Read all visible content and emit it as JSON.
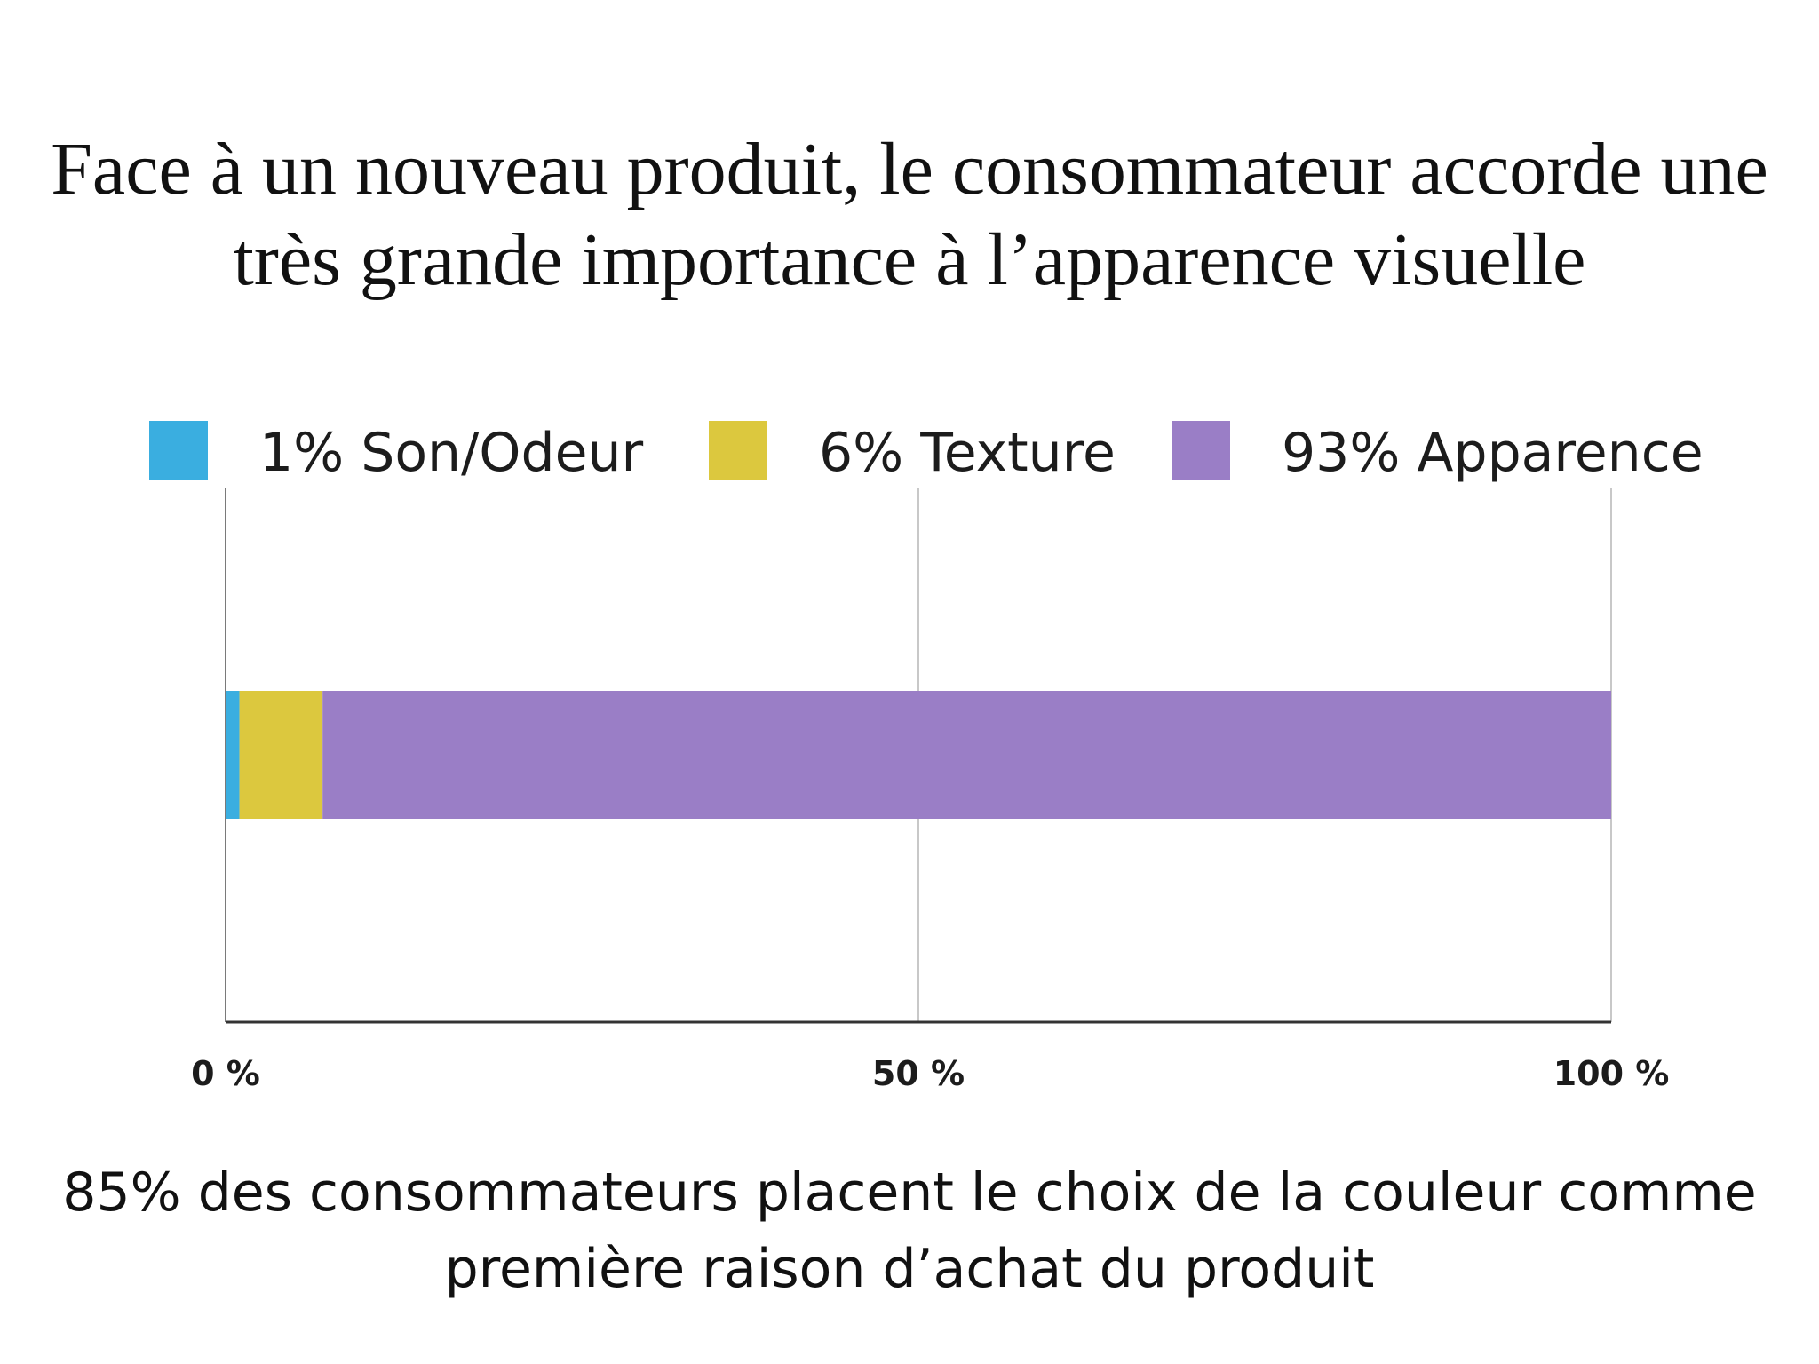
{
  "slide": {
    "title_lines": [
      "Face à un nouveau produit, le consommateur accorde une",
      "très grande importance à l’apparence visuelle"
    ],
    "caption_lines": [
      "85% des consommateurs placent le choix de la couleur comme",
      "première raison d’achat du produit"
    ]
  },
  "chart_data": {
    "type": "bar",
    "orientation": "horizontal",
    "stacked": true,
    "categories": [
      ""
    ],
    "series": [
      {
        "name": "1% Son/Odeur",
        "values": [
          1
        ],
        "color": "#3aaee0"
      },
      {
        "name": "6% Texture",
        "values": [
          6
        ],
        "color": "#dcc83e"
      },
      {
        "name": "93% Apparence",
        "values": [
          93
        ],
        "color": "#9a7ec6"
      }
    ],
    "xlim": [
      0,
      100
    ],
    "xticks": [
      0,
      50,
      100
    ],
    "xtick_labels": [
      "0 %",
      "50 %",
      "100 %"
    ],
    "grid": true,
    "legend_position": "top"
  }
}
